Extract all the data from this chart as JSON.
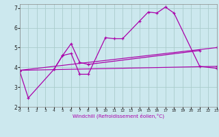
{
  "xlabel": "Windchill (Refroidissement éolien,°C)",
  "bg_color": "#cce8ee",
  "grid_color": "#aacccc",
  "line_color": "#aa00aa",
  "line1_x": [
    0,
    1,
    4,
    5,
    6,
    7,
    8,
    10,
    11,
    12,
    14,
    15,
    16,
    17,
    18,
    21,
    23
  ],
  "line1_y": [
    3.8,
    2.45,
    3.9,
    4.6,
    4.7,
    3.65,
    3.65,
    5.5,
    5.45,
    5.45,
    6.35,
    6.8,
    6.75,
    7.05,
    6.75,
    4.05,
    3.95
  ],
  "line2_x": [
    4,
    5,
    6,
    7,
    8,
    21
  ],
  "line2_y": [
    3.9,
    4.6,
    5.2,
    4.25,
    4.15,
    4.85
  ],
  "line3_x": [
    0,
    23
  ],
  "line3_y": [
    3.85,
    5.0
  ],
  "line4_x": [
    0,
    23
  ],
  "line4_y": [
    3.85,
    4.05
  ],
  "xlim": [
    0,
    23
  ],
  "ylim": [
    2.0,
    7.2
  ],
  "xticks": [
    0,
    1,
    2,
    3,
    4,
    5,
    6,
    7,
    8,
    9,
    10,
    11,
    12,
    13,
    14,
    15,
    16,
    17,
    18,
    19,
    20,
    21,
    22,
    23
  ],
  "yticks": [
    2,
    3,
    4,
    5,
    6,
    7
  ]
}
